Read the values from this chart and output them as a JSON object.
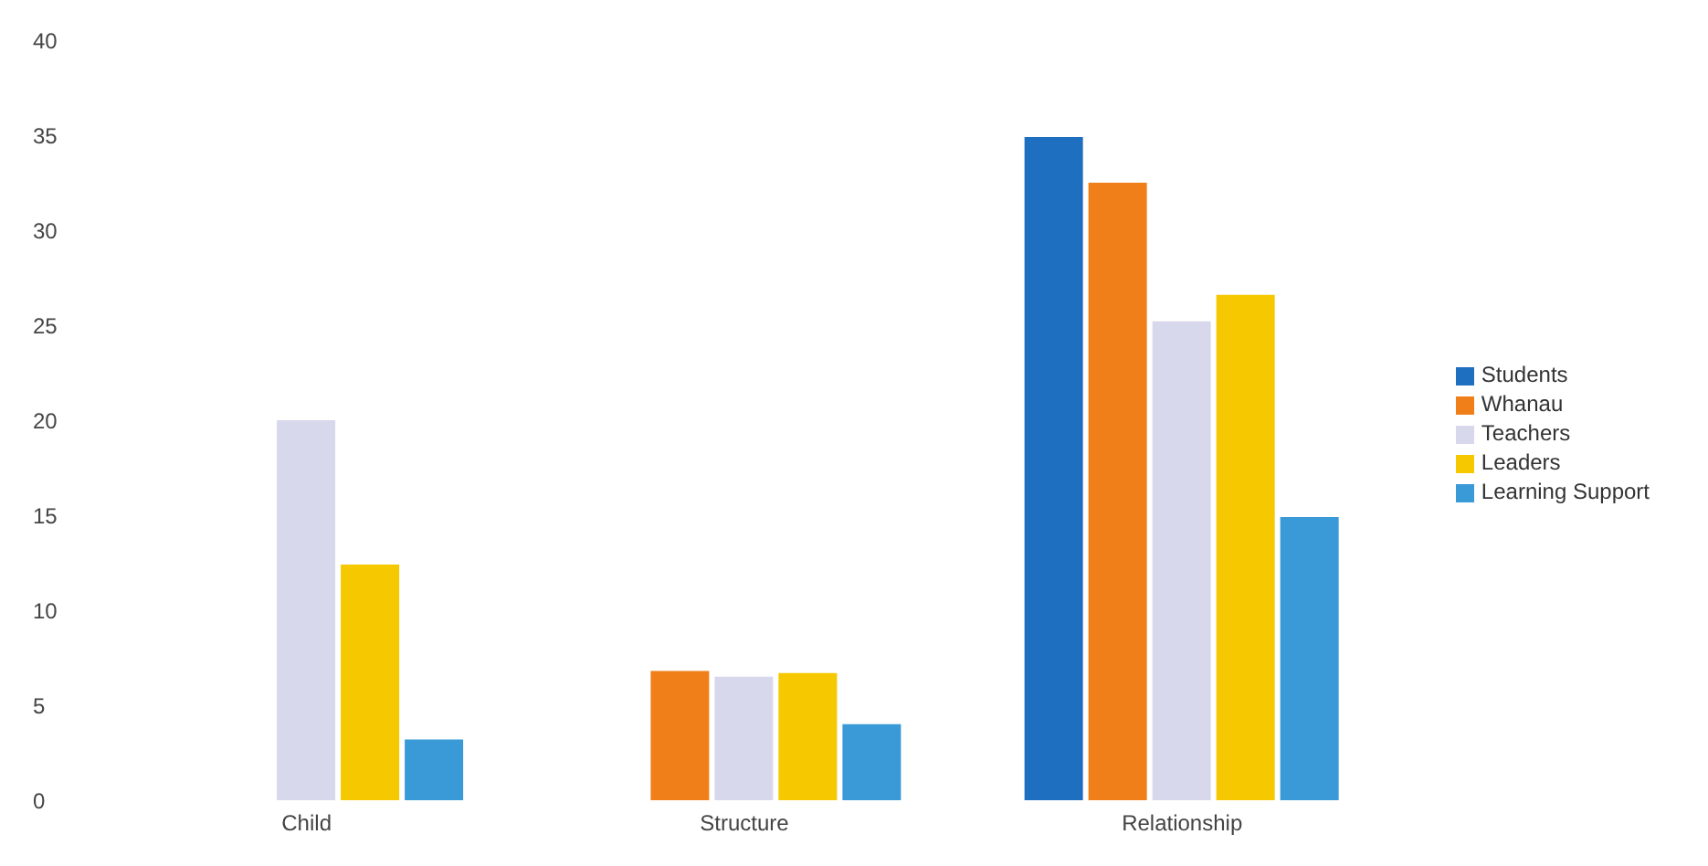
{
  "chart_data": {
    "type": "bar",
    "categories": [
      "Child",
      "Structure",
      "Relationship"
    ],
    "series": [
      {
        "name": "Students",
        "color": "#1f6fc0",
        "values": [
          0,
          0,
          34.9
        ]
      },
      {
        "name": "Whanau",
        "color": "#f07f1a",
        "values": [
          0,
          6.8,
          32.5
        ]
      },
      {
        "name": "Teachers",
        "color": "#d8d8ec",
        "values": [
          20,
          6.5,
          25.2
        ]
      },
      {
        "name": "Leaders",
        "color": "#f5c800",
        "values": [
          12.4,
          6.7,
          26.6
        ]
      },
      {
        "name": "Learning Support",
        "color": "#3a9ad8",
        "values": [
          3.2,
          4.0,
          14.9
        ]
      }
    ],
    "ylim": [
      0,
      40
    ],
    "yticks": [
      0,
      5,
      10,
      15,
      20,
      25,
      30,
      35,
      40
    ],
    "grid": false,
    "legend": "right"
  }
}
